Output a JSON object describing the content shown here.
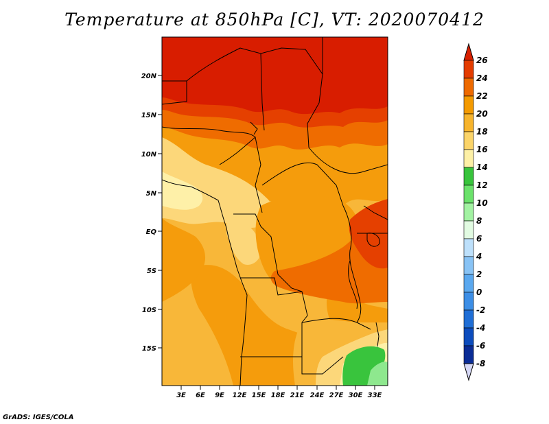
{
  "title": "Temperature at 850hPa [C], VT: 2020070412",
  "credit": "GrADS: IGES/COLA",
  "map": {
    "lat_labels": [
      "20N",
      "15N",
      "10N",
      "5N",
      "EQ",
      "5S",
      "10S",
      "15S"
    ],
    "lon_labels": [
      "3E",
      "6E",
      "9E",
      "12E",
      "15E",
      "18E",
      "21E",
      "24E",
      "27E",
      "30E",
      "33E"
    ]
  },
  "colorbar": {
    "levels": [
      "26",
      "24",
      "22",
      "20",
      "18",
      "16",
      "14",
      "12",
      "10",
      "8",
      "6",
      "4",
      "2",
      "0",
      "-2",
      "-4",
      "-6",
      "-8"
    ],
    "colors": [
      "#d82000",
      "#e43c00",
      "#ee6a00",
      "#f49a00",
      "#f7b42c",
      "#fbd469",
      "#fdf0a6",
      "#38c43c",
      "#6be26b",
      "#a2f2a2",
      "#e2fbe2",
      "#bde0fb",
      "#88c3f5",
      "#5aa8ef",
      "#3c8ee6",
      "#1f6ed6",
      "#0c4cbd",
      "#0a2c96",
      "#060b6f",
      "#d6d8f6"
    ]
  },
  "colors": {
    "north_desert": "#d81d00",
    "band_24": "#e54000",
    "band_22": "#ef6c00",
    "band_20": "#f59c0c",
    "band_18": "#f8b739",
    "band_16": "#fcd77a",
    "band_14": "#fef0a8",
    "band_12": "#39c43d",
    "band_10": "#8ee88e"
  }
}
